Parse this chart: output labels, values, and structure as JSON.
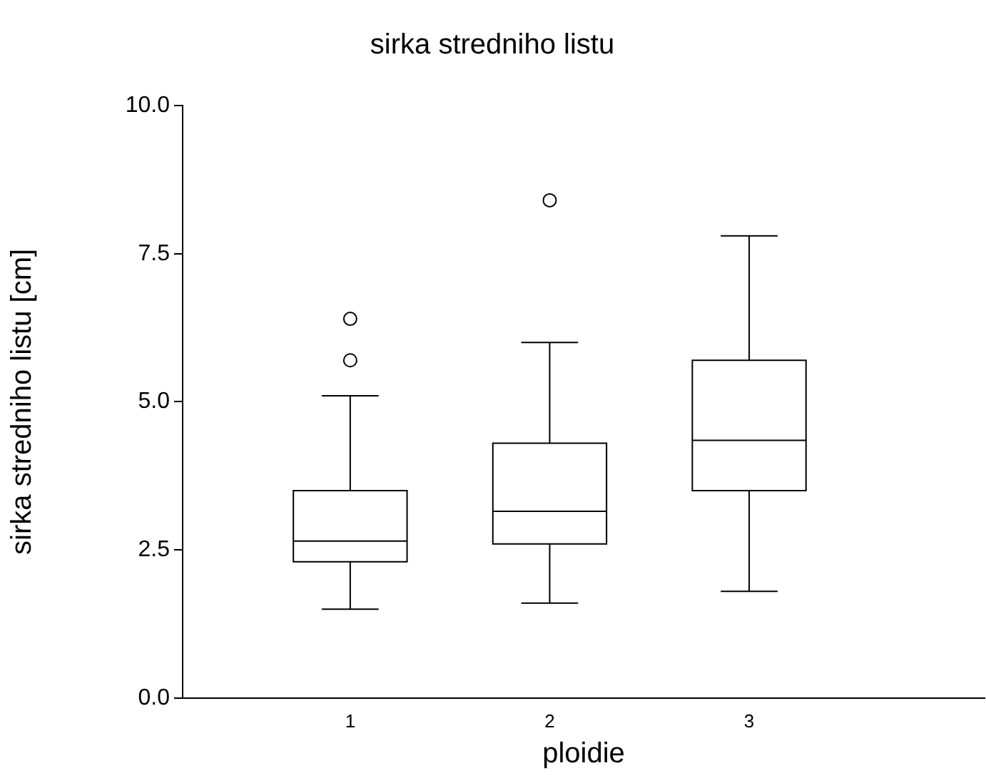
{
  "chart_data": {
    "type": "box",
    "title": "sirka stredniho listu",
    "xlabel": "ploidie",
    "ylabel": "sirka stredniho listu [cm]",
    "categories": [
      "1",
      "2",
      "3"
    ],
    "boxes": [
      {
        "low": 1.5,
        "q1": 2.3,
        "median": 2.65,
        "q3": 3.5,
        "high": 5.1,
        "outliers": [
          5.7,
          6.4
        ]
      },
      {
        "low": 1.6,
        "q1": 2.6,
        "median": 3.15,
        "q3": 4.3,
        "high": 6.0,
        "outliers": [
          8.4
        ]
      },
      {
        "low": 1.8,
        "q1": 3.5,
        "median": 4.35,
        "q3": 5.7,
        "high": 7.8
      }
    ],
    "color": "#000000",
    "ylim": [
      0,
      10
    ],
    "yticks": [
      {
        "value": 0,
        "label": "0.0"
      },
      {
        "value": 2.5,
        "label": "2.5"
      },
      {
        "value": 5,
        "label": "5.0"
      },
      {
        "value": 7.5,
        "label": "7.5"
      },
      {
        "value": 10,
        "label": "10.0"
      }
    ],
    "grid": false,
    "legend": false
  }
}
